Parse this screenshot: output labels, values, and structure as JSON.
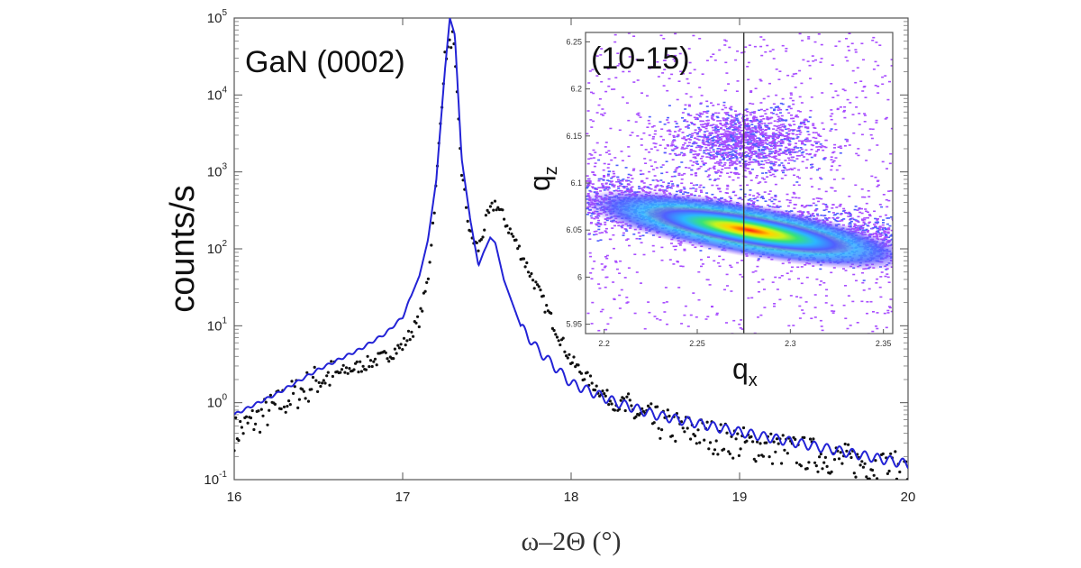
{
  "chart_data": [
    {
      "type": "line",
      "title": "",
      "annotation": "GaN (0002)",
      "xlabel": "ω–2Θ  (°)",
      "ylabel": "counts/s",
      "xlim": [
        16,
        20
      ],
      "ylim": [
        0.1,
        100000
      ],
      "yscale": "log",
      "grid": false,
      "x_ticks": [
        "16",
        "17",
        "18",
        "19",
        "20"
      ],
      "y_ticks": [
        {
          "base": "10",
          "exp": "-1",
          "value": 0.1
        },
        {
          "base": "10",
          "exp": "0",
          "value": 1
        },
        {
          "base": "10",
          "exp": "1",
          "value": 10
        },
        {
          "base": "10",
          "exp": "2",
          "value": 100
        },
        {
          "base": "10",
          "exp": "3",
          "value": 1000
        },
        {
          "base": "10",
          "exp": "4",
          "value": 10000
        },
        {
          "base": "10",
          "exp": "5",
          "value": 100000
        }
      ],
      "series": [
        {
          "style": "line",
          "color": "#2323d6",
          "x": [
            16.0,
            16.25,
            16.5,
            16.75,
            16.9,
            17.0,
            17.1,
            17.15,
            17.2,
            17.25,
            17.28,
            17.31,
            17.35,
            17.4,
            17.45,
            17.48,
            17.52,
            17.55,
            17.6,
            17.7,
            17.8,
            17.9,
            18.0,
            18.25,
            18.5,
            19.0,
            19.5,
            20.0
          ],
          "y": [
            0.7,
            1.3,
            2.7,
            5.0,
            8.0,
            13.0,
            45.0,
            130.0,
            800.0,
            20000.0,
            100000.0,
            60000.0,
            1500.0,
            250.0,
            60.0,
            90.0,
            140.0,
            120.0,
            40.0,
            10.0,
            5.0,
            3.0,
            1.8,
            1.05,
            0.7,
            0.42,
            0.26,
            0.16
          ]
        },
        {
          "style": "points",
          "color": "#111111",
          "x": [
            16.0,
            16.25,
            16.5,
            16.75,
            16.9,
            17.0,
            17.1,
            17.15,
            17.2,
            17.25,
            17.3,
            17.35,
            17.4,
            17.45,
            17.5,
            17.55,
            17.6,
            17.7,
            17.8,
            17.9,
            18.0,
            18.1,
            18.25,
            18.5,
            19.0,
            19.5,
            20.0
          ],
          "y": [
            0.4,
            0.9,
            2.0,
            3.0,
            4.0,
            5.5,
            12.0,
            40.0,
            700.0,
            30000.0,
            60000.0,
            1000.0,
            150.0,
            100.0,
            250.0,
            400.0,
            250.0,
            90.0,
            30.0,
            10.0,
            3.5,
            2.0,
            1.0,
            0.55,
            0.3,
            0.2,
            0.13
          ]
        }
      ]
    },
    {
      "type": "heatmap",
      "title": "",
      "annotation": "(10-15)",
      "xlabel": {
        "base": "q",
        "sub": "x"
      },
      "ylabel": {
        "base": "q",
        "sub": "z"
      },
      "xlim": [
        2.19,
        2.355
      ],
      "ylim": [
        5.94,
        6.26
      ],
      "x_ticks": [
        "2.2",
        "2.25",
        "2.3",
        "2.35"
      ],
      "y_ticks": [
        "5.95",
        "6",
        "6.05",
        "6.1",
        "6.15",
        "6.2",
        "6.25"
      ],
      "vertical_line_x": 2.275,
      "colormap": [
        "#a84dff",
        "#4f5fff",
        "#2bb7ff",
        "#35e37a",
        "#c7f41e",
        "#ffd400",
        "#ff7a00",
        "#ff1a1a"
      ],
      "features": [
        {
          "name": "main peak",
          "qx": 2.275,
          "qz": 6.055,
          "level": "max"
        },
        {
          "name": "upper diffuse",
          "qx": 2.275,
          "qz": 6.145,
          "level": "low"
        }
      ]
    }
  ]
}
